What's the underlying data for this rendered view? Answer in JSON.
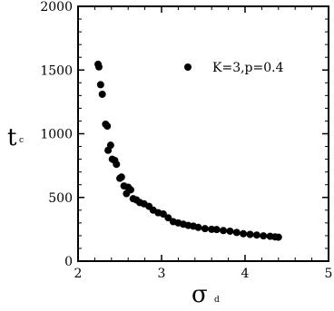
{
  "chart_data": {
    "type": "scatter",
    "xlabel": "σ",
    "xlabel_sub": "d",
    "ylabel": "t",
    "ylabel_sub": "c",
    "xlim": [
      2,
      5
    ],
    "ylim": [
      0,
      2000
    ],
    "x_ticks": [
      "2",
      "3",
      "4",
      "5"
    ],
    "y_ticks": [
      "0",
      "500",
      "1000",
      "1500",
      "2000"
    ],
    "legend_position": "top-right",
    "series": [
      {
        "name": "K=3,p=0.4",
        "color": "#000000",
        "marker": "circle",
        "points": [
          [
            2.24,
            1545
          ],
          [
            2.25,
            1525
          ],
          [
            2.27,
            1385
          ],
          [
            2.29,
            1310
          ],
          [
            2.33,
            1075
          ],
          [
            2.35,
            1060
          ],
          [
            2.36,
            870
          ],
          [
            2.39,
            910
          ],
          [
            2.41,
            800
          ],
          [
            2.44,
            790
          ],
          [
            2.46,
            760
          ],
          [
            2.5,
            650
          ],
          [
            2.52,
            660
          ],
          [
            2.55,
            590
          ],
          [
            2.58,
            530
          ],
          [
            2.6,
            580
          ],
          [
            2.63,
            560
          ],
          [
            2.66,
            490
          ],
          [
            2.7,
            480
          ],
          [
            2.74,
            460
          ],
          [
            2.79,
            450
          ],
          [
            2.85,
            430
          ],
          [
            2.9,
            400
          ],
          [
            2.96,
            380
          ],
          [
            3.02,
            370
          ],
          [
            3.08,
            340
          ],
          [
            3.14,
            310
          ],
          [
            3.2,
            300
          ],
          [
            3.26,
            290
          ],
          [
            3.32,
            280
          ],
          [
            3.38,
            275
          ],
          [
            3.44,
            265
          ],
          [
            3.52,
            255
          ],
          [
            3.6,
            250
          ],
          [
            3.66,
            248
          ],
          [
            3.74,
            240
          ],
          [
            3.82,
            235
          ],
          [
            3.9,
            225
          ],
          [
            3.98,
            215
          ],
          [
            4.06,
            210
          ],
          [
            4.14,
            205
          ],
          [
            4.22,
            198
          ],
          [
            4.3,
            195
          ],
          [
            4.36,
            190
          ],
          [
            4.4,
            188
          ]
        ]
      }
    ]
  }
}
